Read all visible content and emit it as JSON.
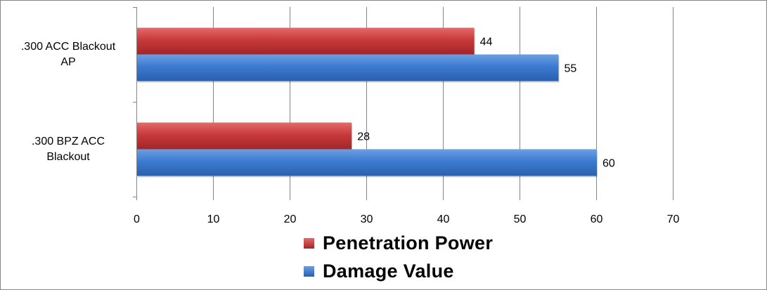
{
  "chart_data": {
    "type": "bar",
    "orientation": "horizontal",
    "categories": [
      ".300 ACC Blackout AP",
      ".300 BPZ ACC Blackout"
    ],
    "category_lines": [
      [
        ".300 ACC Blackout",
        "AP"
      ],
      [
        ".300 BPZ ACC",
        "Blackout"
      ]
    ],
    "series": [
      {
        "name": "Penetration Power",
        "values": [
          44,
          28
        ],
        "color": "#C0393B"
      },
      {
        "name": "Damage Value",
        "values": [
          55,
          60
        ],
        "color": "#3C7BD0"
      }
    ],
    "xlim": [
      0,
      70
    ],
    "xticks": [
      "0",
      "10",
      "20",
      "30",
      "40",
      "50",
      "60",
      "70"
    ],
    "grid": true,
    "data_labels": true,
    "legend_position": "bottom"
  }
}
